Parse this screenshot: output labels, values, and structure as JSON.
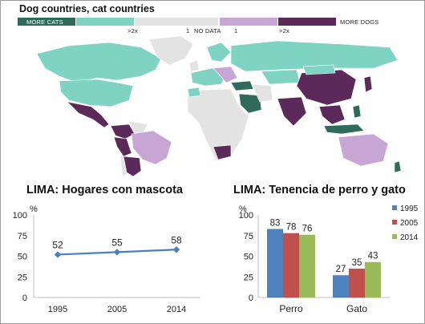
{
  "map": {
    "title": "Dog countries, cat countries",
    "legend": {
      "more_cats": "MORE CATS",
      "gt2x_left": ">2x",
      "one_left": "1",
      "no_data": "NO DATA",
      "one_right": "1",
      "gt2x_right": ">2x",
      "more_dogs": "MORE DOGS"
    },
    "colors": {
      "cats_strong": "#2f6b5a",
      "cats_light": "#7fd3c3",
      "no_data": "#e3e3e3",
      "dogs_light": "#c7a6d6",
      "dogs_strong": "#5c2a5a"
    }
  },
  "chart_data": [
    {
      "type": "line",
      "title": "LIMA: Hogares con mascota",
      "ylabel": "%",
      "categories": [
        "1995",
        "2005",
        "2014"
      ],
      "series": [
        {
          "values": [
            52,
            55,
            58
          ],
          "color": "#4a7fc1"
        }
      ],
      "ylim": [
        0,
        100
      ],
      "yticks": [
        0,
        25,
        50,
        75,
        100
      ],
      "data_labels": true,
      "grid": false
    },
    {
      "type": "bar",
      "title": "LIMA: Tenencia de perro y gato",
      "ylabel": "%",
      "categories": [
        "Perro",
        "Gato"
      ],
      "series": [
        {
          "name": "1995",
          "values": [
            83,
            27
          ],
          "color": "#4f81bd"
        },
        {
          "name": "2005",
          "values": [
            78,
            35
          ],
          "color": "#c0504d"
        },
        {
          "name": "2014",
          "values": [
            76,
            43
          ],
          "color": "#9bbb59"
        }
      ],
      "ylim": [
        0,
        100
      ],
      "yticks": [
        0,
        25,
        50,
        75,
        100
      ],
      "data_labels": true,
      "legend": "right",
      "grid": false
    }
  ]
}
